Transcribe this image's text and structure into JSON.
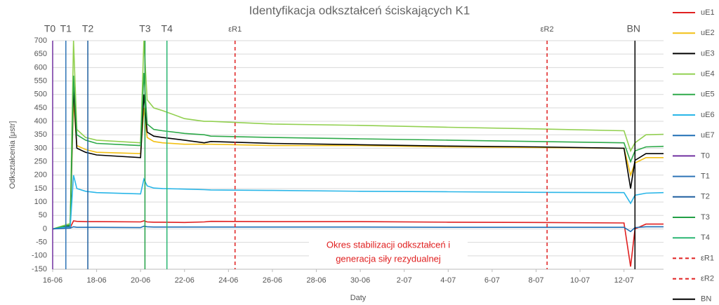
{
  "chart_data": {
    "type": "line",
    "title": "Identyfikacja odkształceń ściskających K1",
    "x_label": "Daty",
    "y_label": "Odkształcenia [μstr]",
    "annotation": [
      "Okres stabilizacji odkształceń i",
      "generacja siły rezydualnej"
    ],
    "xlim": [
      0,
      27.8
    ],
    "xticks": [
      {
        "value": 0,
        "label": "16-06"
      },
      {
        "value": 2,
        "label": "18-06"
      },
      {
        "value": 4,
        "label": "20-06"
      },
      {
        "value": 6,
        "label": "22-06"
      },
      {
        "value": 8,
        "label": "24-06"
      },
      {
        "value": 10,
        "label": "26-06"
      },
      {
        "value": 12,
        "label": "28-06"
      },
      {
        "value": 14,
        "label": "30-06"
      },
      {
        "value": 16,
        "label": "2-07"
      },
      {
        "value": 18,
        "label": "4-07"
      },
      {
        "value": 20,
        "label": "6-07"
      },
      {
        "value": 22,
        "label": "8-07"
      },
      {
        "value": 24,
        "label": "10-07"
      },
      {
        "value": 26,
        "label": "12-07"
      }
    ],
    "ylim": [
      -150,
      700
    ],
    "yticks": [
      -150,
      -100,
      -50,
      0,
      50,
      100,
      150,
      200,
      250,
      300,
      350,
      400,
      450,
      500,
      550,
      600,
      650,
      700
    ],
    "grid": true,
    "x": [
      0,
      0.8,
      0.95,
      1.1,
      1.5,
      2,
      4,
      4.15,
      4.3,
      4.6,
      5,
      6,
      6.9,
      7.2,
      10,
      14,
      18,
      22,
      26,
      26.3,
      26.5,
      27,
      27.8
    ],
    "series": [
      {
        "name": "uE1",
        "color": "#e02020",
        "values": [
          0,
          5,
          30,
          28,
          27,
          27,
          26,
          30,
          26,
          25,
          25,
          24,
          26,
          28,
          27,
          27,
          25,
          24,
          22,
          -140,
          0,
          18,
          18
        ]
      },
      {
        "name": "uE2",
        "color": "#f2c014",
        "values": [
          0,
          10,
          480,
          310,
          295,
          285,
          280,
          450,
          340,
          325,
          320,
          315,
          315,
          315,
          310,
          310,
          305,
          303,
          300,
          200,
          245,
          265,
          265
        ]
      },
      {
        "name": "uE3",
        "color": "#000000",
        "values": [
          0,
          10,
          530,
          300,
          285,
          275,
          265,
          500,
          360,
          345,
          340,
          330,
          320,
          325,
          318,
          313,
          308,
          305,
          300,
          150,
          255,
          280,
          280
        ]
      },
      {
        "name": "uE4",
        "color": "#92d050",
        "values": [
          0,
          20,
          700,
          370,
          340,
          330,
          320,
          700,
          480,
          450,
          440,
          410,
          400,
          400,
          390,
          385,
          378,
          372,
          365,
          290,
          320,
          350,
          352
        ]
      },
      {
        "name": "uE5",
        "color": "#2eaa4a",
        "values": [
          0,
          15,
          570,
          350,
          330,
          318,
          310,
          580,
          390,
          370,
          365,
          355,
          350,
          345,
          340,
          335,
          330,
          325,
          320,
          250,
          290,
          305,
          307
        ]
      },
      {
        "name": "uE6",
        "color": "#29b6e8",
        "values": [
          0,
          8,
          200,
          150,
          140,
          135,
          130,
          185,
          160,
          152,
          150,
          148,
          146,
          145,
          143,
          140,
          138,
          136,
          135,
          95,
          125,
          133,
          135
        ]
      },
      {
        "name": "uE7",
        "color": "#1f6fb5",
        "values": [
          0,
          3,
          8,
          6,
          6,
          6,
          5,
          10,
          8,
          7,
          7,
          7,
          7,
          7,
          7,
          7,
          6,
          6,
          6,
          -10,
          5,
          8,
          8
        ]
      }
    ],
    "markers": [
      {
        "name": "T0",
        "color": "#7030a0",
        "x": 0,
        "dashed": false
      },
      {
        "name": "T1",
        "color": "#2e75b6",
        "x": 0.6,
        "dashed": false
      },
      {
        "name": "T2",
        "color": "#1f5f9f",
        "x": 1.6,
        "dashed": false
      },
      {
        "name": "T3",
        "color": "#22a046",
        "x": 4.2,
        "dashed": false
      },
      {
        "name": "T4",
        "color": "#2bb673",
        "x": 5.2,
        "dashed": false
      },
      {
        "name": "εR1",
        "color": "#e02020",
        "x": 8.3,
        "dashed": true
      },
      {
        "name": "εR2",
        "color": "#e02020",
        "x": 22.5,
        "dashed": true
      },
      {
        "name": "BN",
        "color": "#000000",
        "x": 26.5,
        "dashed": false
      }
    ]
  }
}
